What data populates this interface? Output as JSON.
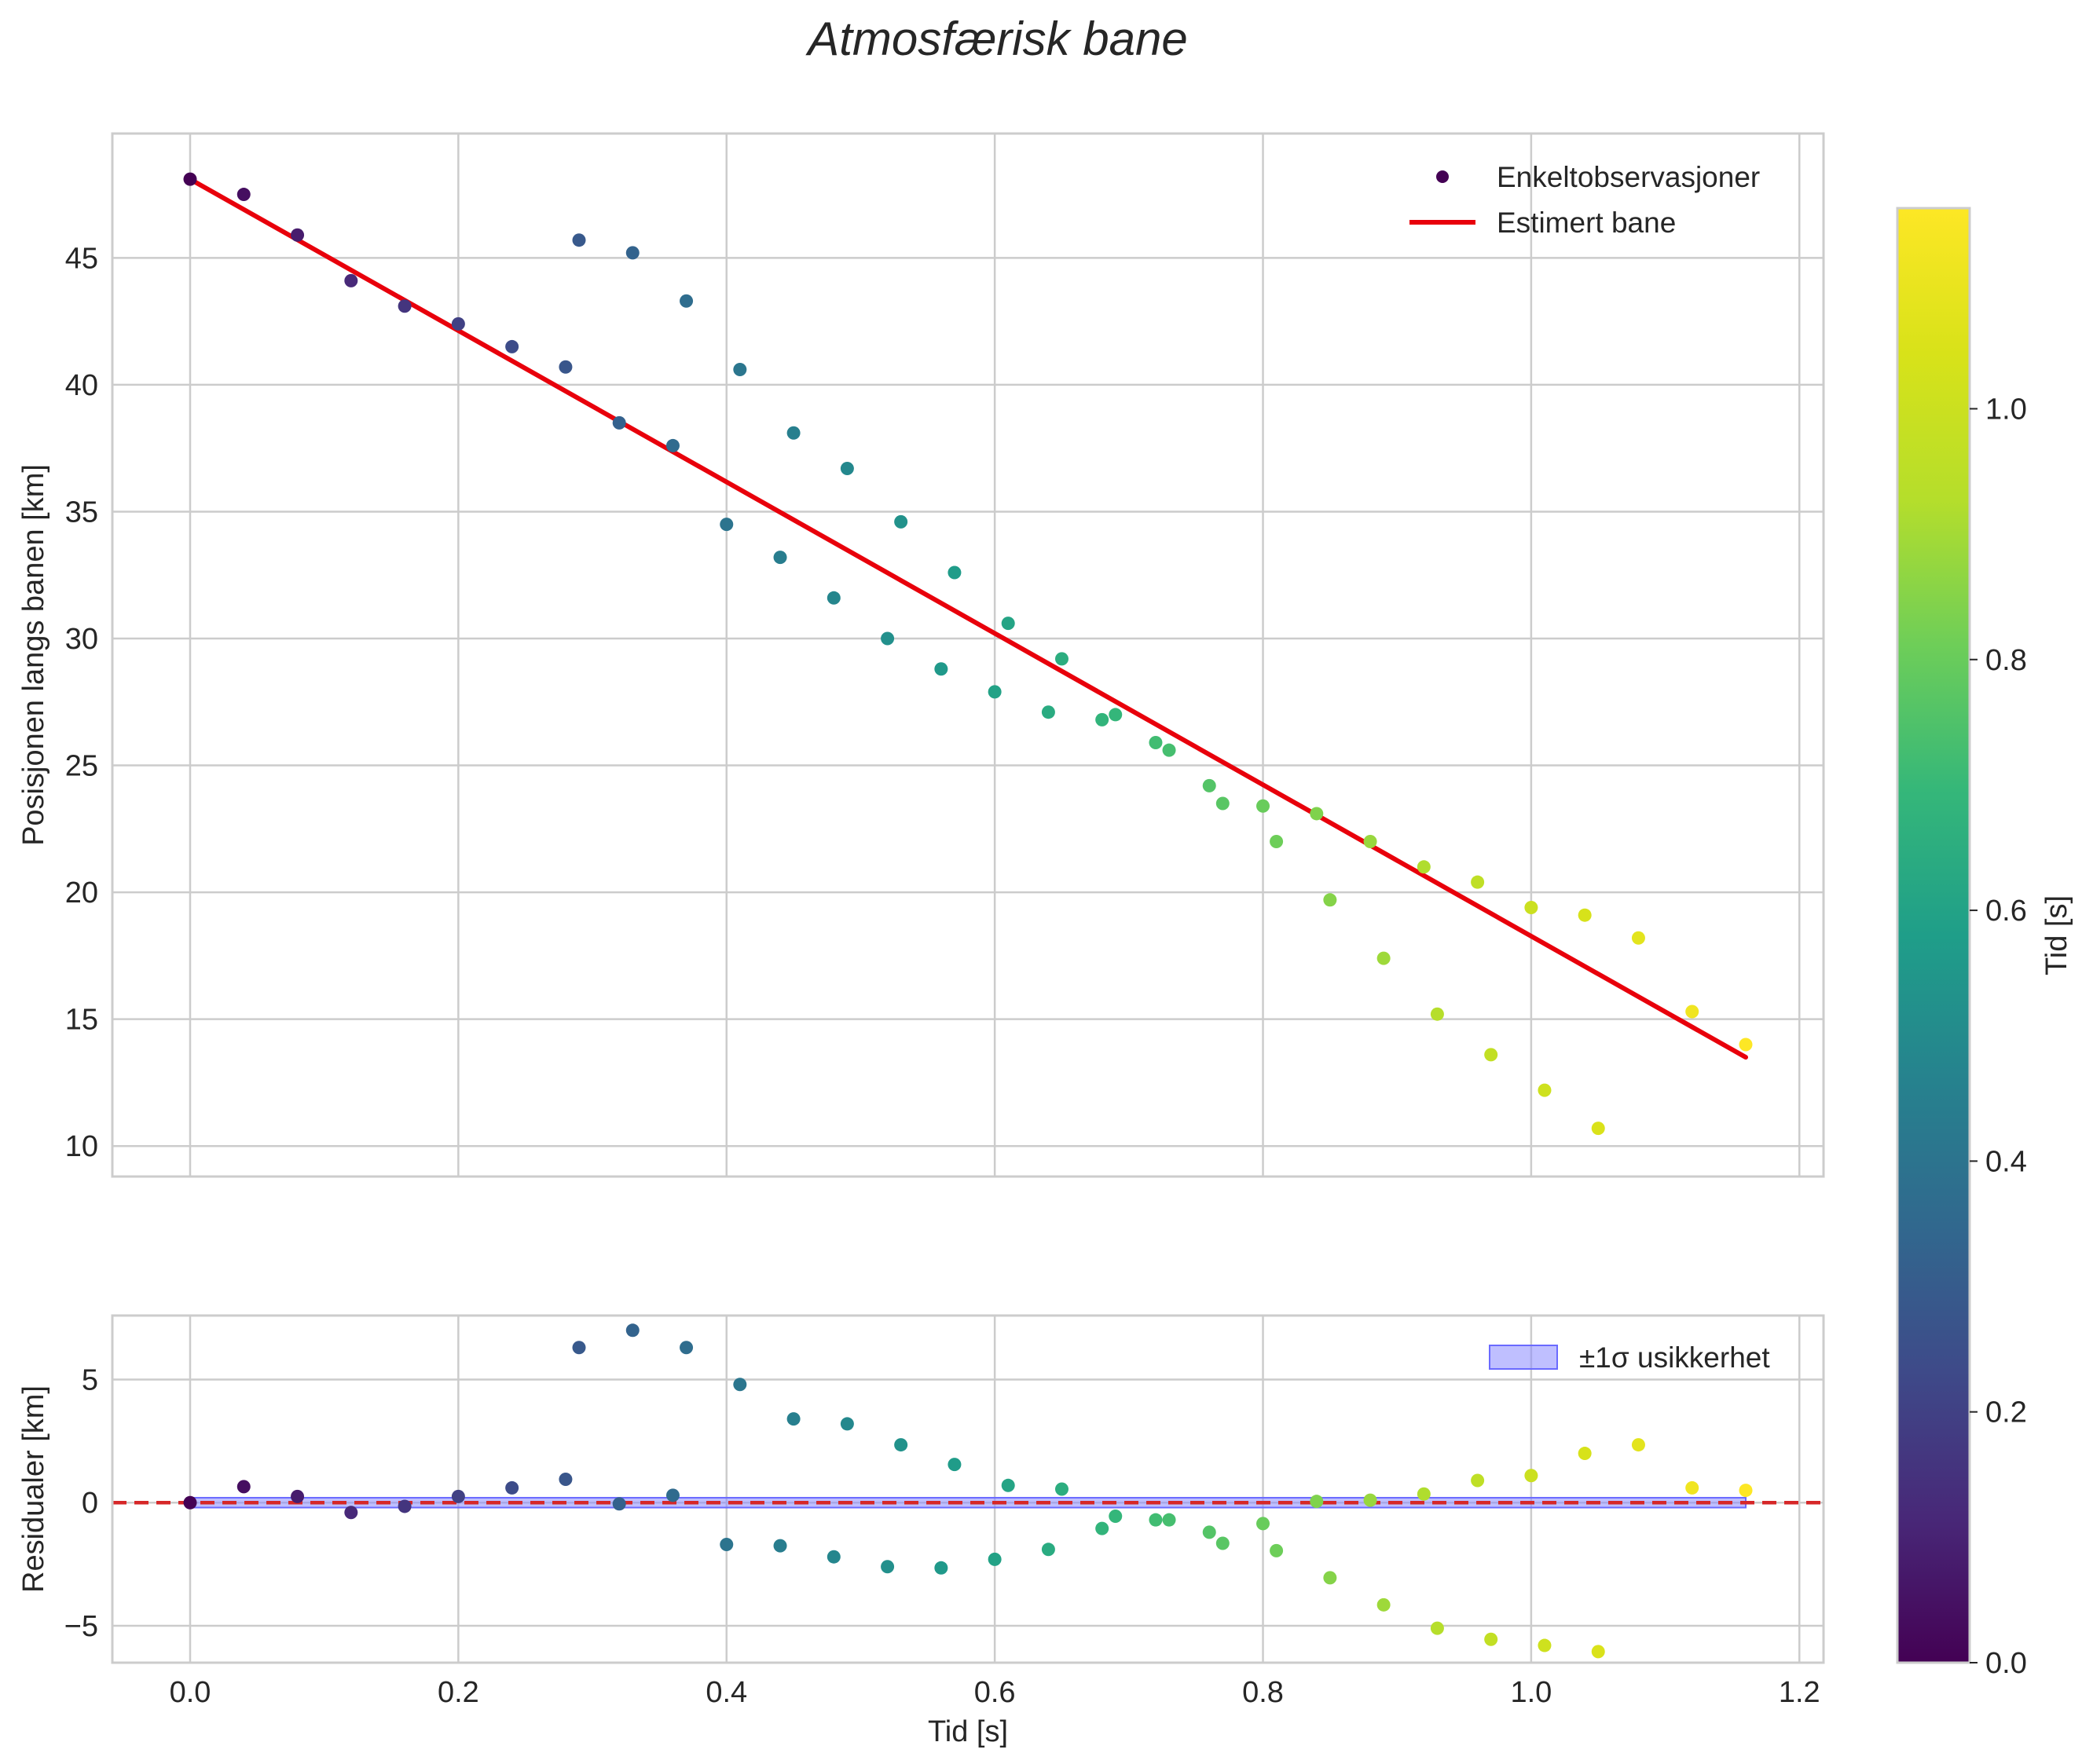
{
  "title": "Atmosfærisk bane",
  "colors": {
    "fit_line": "#e8000b",
    "zero_line": "#d62728",
    "band_fill": "#8a8aff",
    "grid": "#cccccc",
    "frame": "#cccccc"
  },
  "chart_data": [
    {
      "name": "main",
      "type": "scatter",
      "ylabel": "Posisjonen langs banen [km]",
      "xlabel": "",
      "xlim": [
        -0.058,
        1.218
      ],
      "ylim": [
        8.8,
        49.9
      ],
      "xticks": [
        0.0,
        0.2,
        0.4,
        0.6,
        0.8,
        1.0,
        1.2
      ],
      "yticks": [
        10,
        15,
        20,
        25,
        30,
        35,
        40,
        45
      ],
      "grid": true,
      "legend_position": "top-right",
      "legend": [
        "Enkeltobservasjoner",
        "Estimert bane"
      ],
      "series": [
        {
          "name": "Enkeltobservasjoner",
          "kind": "scatter",
          "colormap": "viridis",
          "color_by": "x",
          "points": [
            [
              0.0,
              48.1
            ],
            [
              0.04,
              47.5
            ],
            [
              0.08,
              45.9
            ],
            [
              0.12,
              44.1
            ],
            [
              0.16,
              43.1
            ],
            [
              0.2,
              42.4
            ],
            [
              0.24,
              41.5
            ],
            [
              0.28,
              40.7
            ],
            [
              0.29,
              45.7
            ],
            [
              0.32,
              38.5
            ],
            [
              0.33,
              45.2
            ],
            [
              0.36,
              37.6
            ],
            [
              0.37,
              43.3
            ],
            [
              0.4,
              34.5
            ],
            [
              0.41,
              40.6
            ],
            [
              0.44,
              33.2
            ],
            [
              0.45,
              38.1
            ],
            [
              0.48,
              31.6
            ],
            [
              0.49,
              36.7
            ],
            [
              0.52,
              30.0
            ],
            [
              0.53,
              34.6
            ],
            [
              0.56,
              28.8
            ],
            [
              0.57,
              32.6
            ],
            [
              0.6,
              27.9
            ],
            [
              0.61,
              30.6
            ],
            [
              0.64,
              27.1
            ],
            [
              0.65,
              29.2
            ],
            [
              0.68,
              26.8
            ],
            [
              0.69,
              27.0
            ],
            [
              0.72,
              25.9
            ],
            [
              0.73,
              25.6
            ],
            [
              0.76,
              24.2
            ],
            [
              0.77,
              23.5
            ],
            [
              0.8,
              23.4
            ],
            [
              0.81,
              22.0
            ],
            [
              0.84,
              23.1
            ],
            [
              0.85,
              19.7
            ],
            [
              0.88,
              22.0
            ],
            [
              0.89,
              17.4
            ],
            [
              0.92,
              21.0
            ],
            [
              0.93,
              15.2
            ],
            [
              0.96,
              20.4
            ],
            [
              0.97,
              13.6
            ],
            [
              1.0,
              19.4
            ],
            [
              1.01,
              12.2
            ],
            [
              1.04,
              19.1
            ],
            [
              1.05,
              10.7
            ],
            [
              1.08,
              18.2
            ],
            [
              1.12,
              15.3
            ],
            [
              1.16,
              14.0
            ]
          ]
        },
        {
          "name": "Estimert bane",
          "kind": "line",
          "points": [
            [
              0.0,
              48.1
            ],
            [
              1.16,
              13.5
            ]
          ]
        }
      ]
    },
    {
      "name": "residuals",
      "type": "scatter",
      "ylabel": "Residualer [km]",
      "xlabel": "Tid [s]",
      "xlim": [
        -0.058,
        1.218
      ],
      "ylim": [
        -6.5,
        7.6
      ],
      "xticks": [
        0.0,
        0.2,
        0.4,
        0.6,
        0.8,
        1.0,
        1.2
      ],
      "xtick_labels": [
        "0.0",
        "0.2",
        "0.4",
        "0.6",
        "0.8",
        "1.0",
        "1.2"
      ],
      "yticks": [
        -5,
        0,
        5
      ],
      "ytick_labels": [
        "−5",
        "0",
        "5"
      ],
      "grid": true,
      "legend_position": "top-right",
      "legend": [
        "±1σ usikkerhet"
      ],
      "band": {
        "name": "±1σ usikkerhet",
        "x": [
          0.0,
          1.16
        ],
        "low": -0.2,
        "high": 0.2
      },
      "hline": {
        "y": 0,
        "style": "dashed"
      },
      "series": [
        {
          "name": "residualer",
          "kind": "scatter",
          "colormap": "viridis",
          "color_by": "x",
          "points": [
            [
              0.0,
              0.0
            ],
            [
              0.04,
              0.65
            ],
            [
              0.08,
              0.25
            ],
            [
              0.12,
              -0.4
            ],
            [
              0.16,
              -0.15
            ],
            [
              0.2,
              0.25
            ],
            [
              0.24,
              0.6
            ],
            [
              0.28,
              0.95
            ],
            [
              0.29,
              6.3
            ],
            [
              0.32,
              -0.05
            ],
            [
              0.33,
              7.0
            ],
            [
              0.36,
              0.3
            ],
            [
              0.37,
              6.3
            ],
            [
              0.4,
              -1.7
            ],
            [
              0.41,
              4.8
            ],
            [
              0.44,
              -1.75
            ],
            [
              0.45,
              3.4
            ],
            [
              0.48,
              -2.2
            ],
            [
              0.49,
              3.2
            ],
            [
              0.52,
              -2.6
            ],
            [
              0.53,
              2.35
            ],
            [
              0.56,
              -2.65
            ],
            [
              0.57,
              1.55
            ],
            [
              0.6,
              -2.3
            ],
            [
              0.61,
              0.7
            ],
            [
              0.64,
              -1.9
            ],
            [
              0.65,
              0.55
            ],
            [
              0.68,
              -1.05
            ],
            [
              0.69,
              -0.55
            ],
            [
              0.72,
              -0.7
            ],
            [
              0.73,
              -0.7
            ],
            [
              0.76,
              -1.2
            ],
            [
              0.77,
              -1.65
            ],
            [
              0.8,
              -0.85
            ],
            [
              0.81,
              -1.95
            ],
            [
              0.84,
              0.05
            ],
            [
              0.85,
              -3.05
            ],
            [
              0.88,
              0.1
            ],
            [
              0.89,
              -4.15
            ],
            [
              0.92,
              0.35
            ],
            [
              0.93,
              -5.1
            ],
            [
              0.96,
              0.9
            ],
            [
              0.97,
              -5.55
            ],
            [
              1.0,
              1.1
            ],
            [
              1.01,
              -5.8
            ],
            [
              1.04,
              2.0
            ],
            [
              1.05,
              -6.05
            ],
            [
              1.08,
              2.35
            ],
            [
              1.12,
              0.6
            ],
            [
              1.16,
              0.5
            ]
          ]
        }
      ]
    },
    {
      "name": "colorbar",
      "type": "colorbar",
      "colormap": "viridis",
      "label": "Tid [s]",
      "range": [
        0.0,
        1.16
      ],
      "ticks": [
        0.0,
        0.2,
        0.4,
        0.6,
        0.8,
        1.0
      ],
      "tick_labels": [
        "0.0",
        "0.2",
        "0.4",
        "0.6",
        "0.8",
        "1.0"
      ]
    }
  ]
}
